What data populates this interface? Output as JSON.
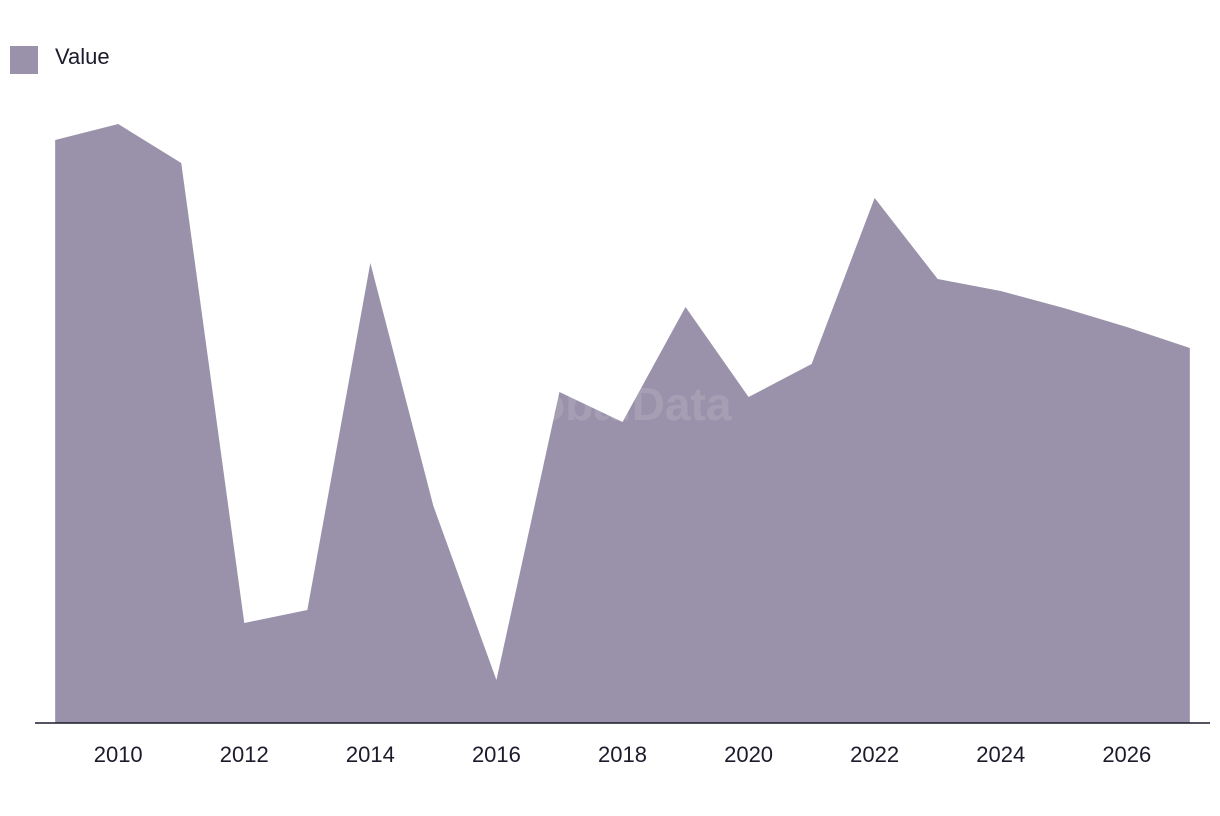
{
  "chart_data": {
    "type": "area",
    "watermark": "GlobalData",
    "x": [
      2009,
      2010,
      2011,
      2012,
      2013,
      2014,
      2015,
      2016,
      2017,
      2018,
      2019,
      2020,
      2021,
      2022,
      2023,
      2024,
      2025,
      2026,
      2027
    ],
    "series": [
      {
        "name": "Value",
        "color": "#9a92aa",
        "values": [
          58.3,
          59.9,
          56.0,
          10.0,
          11.3,
          46.0,
          21.7,
          4.3,
          33.1,
          30.1,
          41.6,
          32.6,
          35.9,
          52.5,
          44.4,
          43.2,
          41.5,
          39.6,
          37.5
        ]
      }
    ],
    "xlim": [
      2008.68,
      2027.32
    ],
    "xticks": [
      2010,
      2012,
      2014,
      2016,
      2018,
      2020,
      2022,
      2024,
      2026
    ],
    "ylim": [
      0,
      60
    ],
    "legend": "top-left",
    "grid": false
  }
}
